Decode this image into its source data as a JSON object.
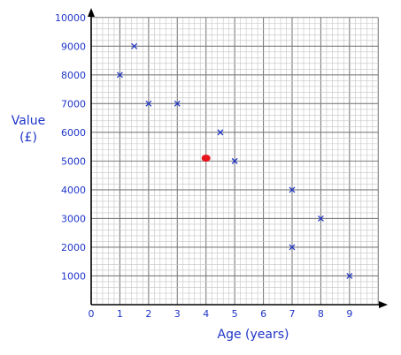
{
  "chart_data": {
    "type": "scatter",
    "xlabel": "Age (years)",
    "ylabel": [
      "Value",
      "(£)"
    ],
    "xlim": [
      0,
      10.3
    ],
    "ylim": [
      0,
      10300
    ],
    "x_ticks": [
      0,
      1,
      2,
      3,
      4,
      5,
      6,
      7,
      8,
      9
    ],
    "y_ticks": [
      1000,
      2000,
      3000,
      4000,
      5000,
      6000,
      7000,
      8000,
      9000,
      10000
    ],
    "grid": true,
    "points": [
      {
        "x": 1.0,
        "y": 8000
      },
      {
        "x": 1.5,
        "y": 9000
      },
      {
        "x": 2.0,
        "y": 7000
      },
      {
        "x": 3.0,
        "y": 7000
      },
      {
        "x": 4.5,
        "y": 6000
      },
      {
        "x": 5.0,
        "y": 5000
      },
      {
        "x": 7.0,
        "y": 4000
      },
      {
        "x": 7.0,
        "y": 2000
      },
      {
        "x": 8.0,
        "y": 3000
      },
      {
        "x": 9.0,
        "y": 1000
      }
    ],
    "highlight": {
      "x": 4.0,
      "y": 5100
    },
    "colors": {
      "marker": "#1f35c8",
      "highlight": "#e8141c",
      "label": "#1f35c8",
      "axis": "#000000"
    }
  }
}
